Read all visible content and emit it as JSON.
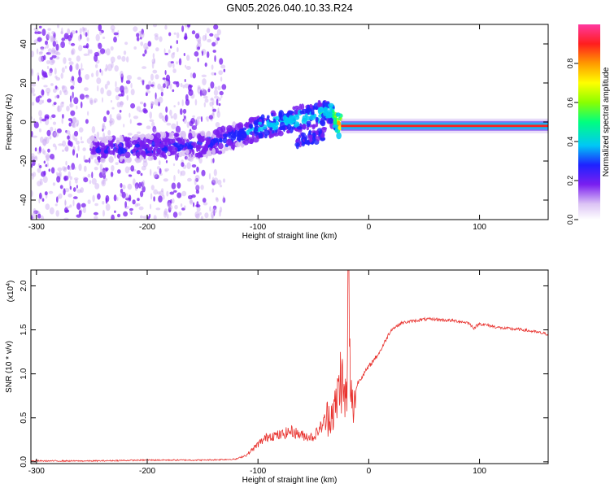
{
  "title": "GN05.2026.040.10.33.R24",
  "chart_data": [
    {
      "type": "heatmap",
      "xlabel": "Height of straight line (km)",
      "ylabel": "Frequency (Hz)",
      "xlim": [
        -305,
        162
      ],
      "ylim": [
        -50,
        50
      ],
      "x_ticks": [
        -300,
        -200,
        -100,
        0,
        100
      ],
      "y_ticks": [
        -40,
        -20,
        0,
        20,
        40
      ],
      "colorbar": {
        "label": "Normalized spectral amplitude",
        "range": [
          0,
          1
        ],
        "ticks": [
          "0.0",
          "0.2",
          "0.4",
          "0.6",
          "0.8"
        ],
        "tick_values": [
          0,
          0.2,
          0.4,
          0.6,
          0.8
        ]
      },
      "ridge": {
        "x": [
          -250,
          -220,
          -200,
          -180,
          -160,
          -140,
          -120,
          -100,
          -80,
          -60,
          -45,
          -35,
          -25,
          -10,
          0,
          50,
          100,
          162
        ],
        "frequency": [
          -14,
          -14,
          -13,
          -12,
          -12,
          -11,
          -7,
          -3,
          0,
          2,
          4,
          6,
          -3,
          -2,
          -2,
          -2,
          -2,
          -2
        ],
        "amplitude": [
          0.25,
          0.3,
          0.3,
          0.3,
          0.28,
          0.3,
          0.35,
          0.4,
          0.45,
          0.45,
          0.45,
          0.5,
          0.9,
          0.95,
          0.95,
          0.98,
          0.98,
          0.97
        ]
      }
    },
    {
      "type": "line",
      "xlabel": "Height of straight line (km)",
      "ylabel": "SNR (10 * v/v)",
      "y_multiplier": "(x10",
      "y_multiplier_exp": "4",
      "y_multiplier_close": ")",
      "xlim": [
        -305,
        162
      ],
      "ylim": [
        -0.02,
        2.18
      ],
      "x_ticks": [
        -300,
        -200,
        -100,
        0,
        100
      ],
      "y_ticks": [
        "0.0",
        "0.5",
        "1.0",
        "1.5",
        "2.0"
      ],
      "y_tick_values": [
        0,
        0.5,
        1.0,
        1.5,
        2.0
      ],
      "color": "#e8302c",
      "series": [
        {
          "x": [
            -305,
            -250,
            -200,
            -150,
            -120,
            -110,
            -100,
            -90,
            -80,
            -70,
            -60,
            -50,
            -40,
            -35,
            -30,
            -25,
            -22,
            -20,
            -18,
            -15,
            -10,
            0,
            10,
            20,
            30,
            40,
            50,
            60,
            80,
            90,
            95,
            100,
            120,
            140,
            162
          ],
          "y": [
            0.01,
            0.01,
            0.02,
            0.02,
            0.03,
            0.08,
            0.2,
            0.3,
            0.3,
            0.35,
            0.3,
            0.28,
            0.45,
            0.55,
            0.6,
            1.0,
            0.7,
            0.75,
            1.3,
            0.6,
            0.9,
            1.08,
            1.25,
            1.5,
            1.58,
            1.6,
            1.62,
            1.62,
            1.6,
            1.58,
            1.52,
            1.57,
            1.52,
            1.5,
            1.45
          ]
        }
      ]
    }
  ]
}
